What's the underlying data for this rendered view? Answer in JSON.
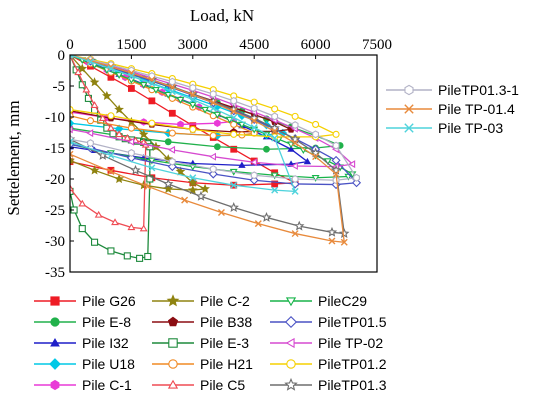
{
  "chart_data": {
    "type": "line",
    "title": "",
    "xlabel": "Load, kN",
    "ylabel": "Settelement, mm",
    "x_axis_position": "top",
    "xlim": [
      0,
      7500
    ],
    "ylim": [
      -35,
      0
    ],
    "x_ticks": [
      0,
      1500,
      3000,
      4500,
      6000,
      7500
    ],
    "x_tick_labels": [
      "0",
      "1500",
      "3000",
      "4500",
      "6000",
      "7500"
    ],
    "y_ticks": [
      0,
      -5,
      -10,
      -15,
      -20,
      -25,
      -30,
      -35
    ],
    "y_tick_labels": [
      "0",
      "-5",
      "-10",
      "-15",
      "-20",
      "-25",
      "-30",
      "-35"
    ],
    "grid": false,
    "legend_layout": "right-of-plot (3 entries) and below-plot (15 entries, 3 columns)",
    "series": [
      {
        "name": "Pile G26",
        "color": "#ee1c25",
        "marker": "square",
        "x": [
          0,
          500,
          1000,
          1500,
          2000,
          2500,
          3000,
          3500,
          4000,
          4500,
          5000,
          5500,
          5000,
          4000,
          3000,
          2000,
          1000,
          0
        ],
        "y": [
          0,
          -1.8,
          -3.6,
          -5.4,
          -7.4,
          -9.4,
          -11.4,
          -13.3,
          -15.2,
          -17.1,
          -19.0,
          -20.6,
          -20.8,
          -21.0,
          -20.6,
          -19.8,
          -18.6,
          -17.2
        ]
      },
      {
        "name": "Pile E-8",
        "color": "#21b14b",
        "marker": "circle",
        "x": [
          0,
          600,
          1200,
          1800,
          2400,
          3000,
          3600,
          4200,
          4800,
          5400,
          6000,
          6600,
          6000,
          4800,
          3600,
          2400,
          1200,
          0
        ],
        "y": [
          0,
          -1.2,
          -2.5,
          -3.8,
          -5.1,
          -6.4,
          -7.7,
          -9.0,
          -10.3,
          -11.6,
          -13.0,
          -14.6,
          -15.0,
          -15.2,
          -14.8,
          -14.0,
          -13.0,
          -11.8
        ]
      },
      {
        "name": "Pile I32",
        "color": "#1f1fc8",
        "marker": "triangle-up",
        "x": [
          0,
          600,
          1200,
          1800,
          2400,
          3000,
          3600,
          4200,
          4800,
          5400,
          5800,
          5400,
          4200,
          3000,
          1800,
          600,
          0
        ],
        "y": [
          0,
          -1.5,
          -3.1,
          -4.7,
          -6.3,
          -7.9,
          -9.6,
          -11.4,
          -13.2,
          -15.2,
          -17.2,
          -17.6,
          -17.8,
          -17.5,
          -16.6,
          -15.4,
          -14.8
        ]
      },
      {
        "name": "Pile U18",
        "color": "#00c8e6",
        "marker": "diamond",
        "x": [
          0,
          600,
          1200,
          1800,
          2400,
          3000,
          3600,
          4200,
          4800,
          5200,
          4800,
          3600,
          2400,
          1200,
          0
        ],
        "y": [
          0,
          -1.3,
          -2.7,
          -4.1,
          -5.5,
          -6.9,
          -8.3,
          -9.8,
          -11.3,
          -12.6,
          -12.9,
          -13.0,
          -12.6,
          -11.9,
          -11.0
        ]
      },
      {
        "name": "Pile C-1",
        "color": "#e93ad7",
        "marker": "hexagon",
        "x": [
          0,
          450,
          900,
          1350,
          1800,
          2250,
          2700,
          3150,
          3600,
          4000,
          3600,
          2700,
          1800,
          900,
          0
        ],
        "y": [
          0,
          -1.2,
          -2.4,
          -3.6,
          -4.8,
          -6.0,
          -7.2,
          -8.4,
          -9.6,
          -10.7,
          -11.0,
          -11.2,
          -10.8,
          -10.1,
          -9.2
        ]
      },
      {
        "name": "Pile C-2",
        "color": "#8f8310",
        "marker": "star",
        "x": [
          0,
          300,
          600,
          900,
          1200,
          1500,
          1800,
          2100,
          2400,
          2700,
          3000,
          3300,
          3000,
          2400,
          1800,
          1200,
          600,
          0
        ],
        "y": [
          0,
          -2.2,
          -4.4,
          -6.6,
          -8.8,
          -10.8,
          -12.8,
          -14.8,
          -16.8,
          -18.8,
          -20.6,
          -21.6,
          -21.8,
          -21.6,
          -21.0,
          -20.0,
          -18.6,
          -17.0
        ]
      },
      {
        "name": "Pile B38",
        "color": "#8b0d12",
        "marker": "pentagon",
        "x": [
          0,
          500,
          1000,
          1500,
          2000,
          2500,
          3000,
          3500,
          4000,
          4500,
          5000,
          5400,
          5000,
          4000,
          3000,
          2000,
          1000,
          0
        ],
        "y": [
          0,
          -1.0,
          -2.0,
          -3.0,
          -4.1,
          -5.2,
          -6.3,
          -7.4,
          -8.5,
          -9.6,
          -10.8,
          -12.0,
          -12.3,
          -12.4,
          -12.0,
          -11.2,
          -10.2,
          -9.0
        ]
      },
      {
        "name": "Pile E-3",
        "color": "#1d8a3c",
        "marker": "square-open",
        "x": [
          0,
          150,
          300,
          450,
          600,
          750,
          900,
          1050,
          1200,
          1350,
          1500,
          1650,
          1800,
          1900,
          1950,
          1950,
          1900,
          1700,
          1400,
          1000,
          600,
          300,
          100,
          0
        ],
        "y": [
          0,
          -2.4,
          -4.8,
          -7.0,
          -8.9,
          -10.5,
          -11.8,
          -12.7,
          -13.2,
          -13.5,
          -13.7,
          -13.9,
          -14.1,
          -14.3,
          -14.8,
          -20.0,
          -32.5,
          -32.8,
          -32.4,
          -31.6,
          -30.2,
          -28.0,
          -25.0,
          -22.0
        ]
      },
      {
        "name": "Pile H21",
        "color": "#f08a24",
        "marker": "circle-open",
        "x": [
          0,
          500,
          1000,
          1500,
          2000,
          2500,
          3000,
          3500,
          4000,
          4500,
          4200,
          3500,
          2500,
          1500,
          500,
          0
        ],
        "y": [
          0,
          -1.4,
          -2.8,
          -4.2,
          -5.6,
          -7.0,
          -8.4,
          -9.8,
          -11.2,
          -12.6,
          -12.9,
          -13.0,
          -12.6,
          -11.8,
          -10.6,
          -9.8
        ]
      },
      {
        "name": "Pile C5",
        "color": "#ef4c54",
        "marker": "triangle-open",
        "x": [
          0,
          200,
          400,
          600,
          800,
          1000,
          1200,
          1400,
          1600,
          1800,
          1850,
          1800,
          1500,
          1100,
          700,
          300,
          0
        ],
        "y": [
          0,
          -2.8,
          -5.6,
          -8.1,
          -10.2,
          -11.8,
          -12.8,
          -13.4,
          -13.8,
          -14.1,
          -14.5,
          -28.0,
          -27.8,
          -27.0,
          -25.8,
          -24.0,
          -21.5
        ]
      },
      {
        "name": "PileC29",
        "color": "#18b44a",
        "marker": "triangle-down-open",
        "x": [
          0,
          300,
          600,
          900,
          1200,
          1500,
          1800,
          2100,
          2400,
          2700,
          3000,
          3300,
          3600,
          3900,
          4200,
          4500,
          4800,
          5100,
          5400,
          5700,
          6000,
          6300,
          6600,
          6900,
          6800,
          6000,
          5000,
          4000,
          3000,
          2000,
          1000,
          0
        ],
        "y": [
          0,
          -0.8,
          -1.6,
          -2.4,
          -3.2,
          -4.0,
          -4.8,
          -5.6,
          -6.4,
          -7.2,
          -8.0,
          -8.8,
          -9.6,
          -10.4,
          -11.2,
          -12.0,
          -12.8,
          -13.6,
          -14.4,
          -15.3,
          -16.2,
          -17.1,
          -18.1,
          -19.2,
          -19.6,
          -19.8,
          -19.4,
          -18.8,
          -18.0,
          -17.0,
          -15.8,
          -14.4
        ]
      },
      {
        "name": "PileTP01.5",
        "color": "#4a52c4",
        "marker": "diamond-open",
        "x": [
          0,
          500,
          1000,
          1500,
          2000,
          2500,
          3000,
          3500,
          4000,
          4500,
          5000,
          5500,
          6000,
          6500,
          7000,
          6500,
          5500,
          4500,
          3500,
          2500,
          1500,
          500,
          0
        ],
        "y": [
          0,
          -1.0,
          -2.0,
          -3.1,
          -4.2,
          -5.3,
          -6.5,
          -7.7,
          -9.0,
          -10.4,
          -11.9,
          -13.5,
          -15.2,
          -17.0,
          -20.6,
          -20.9,
          -20.8,
          -20.2,
          -19.2,
          -18.0,
          -16.6,
          -15.0,
          -14.4
        ]
      },
      {
        "name": "Pile TP-02",
        "color": "#d64ad0",
        "marker": "triangle-left-open",
        "x": [
          0,
          500,
          1000,
          1500,
          2000,
          2500,
          3000,
          3500,
          4000,
          4500,
          5000,
          5500,
          6000,
          6500,
          6900,
          6500,
          5500,
          4500,
          3500,
          2500,
          1500,
          500,
          0
        ],
        "y": [
          0,
          -0.9,
          -1.8,
          -2.7,
          -3.7,
          -4.7,
          -5.7,
          -6.8,
          -8.0,
          -9.2,
          -10.5,
          -11.9,
          -13.4,
          -15.2,
          -17.6,
          -18.0,
          -17.9,
          -17.3,
          -16.4,
          -15.3,
          -14.0,
          -12.6,
          -12.0
        ]
      },
      {
        "name": "PileTP01.2",
        "color": "#f5d000",
        "marker": "circle-open",
        "x": [
          0,
          500,
          1000,
          1500,
          2000,
          2500,
          3000,
          3500,
          4000,
          4500,
          5000,
          5500,
          6000,
          6500,
          6000,
          5000,
          4000,
          3000,
          2000,
          1000,
          0
        ],
        "y": [
          0,
          -0.7,
          -1.4,
          -2.2,
          -3.0,
          -3.8,
          -4.7,
          -5.6,
          -6.6,
          -7.6,
          -8.7,
          -9.9,
          -11.2,
          -12.8,
          -13.2,
          -13.2,
          -12.8,
          -12.0,
          -11.0,
          -9.8,
          -8.8
        ]
      },
      {
        "name": "PileTP01.3",
        "color": "#6e6e6e",
        "marker": "star-open",
        "x": [
          0,
          500,
          1000,
          1500,
          2000,
          2500,
          3000,
          3500,
          4000,
          4500,
          5000,
          5500,
          6000,
          6500,
          6700,
          6400,
          5600,
          4800,
          4000,
          3200,
          2400,
          1600,
          800,
          0
        ],
        "y": [
          0,
          -0.9,
          -1.9,
          -2.9,
          -4.0,
          -5.1,
          -6.3,
          -7.5,
          -8.8,
          -10.2,
          -11.8,
          -13.6,
          -15.8,
          -18.6,
          -28.8,
          -28.6,
          -27.6,
          -26.2,
          -24.6,
          -22.8,
          -20.8,
          -18.6,
          -16.2,
          -13.6
        ]
      },
      {
        "name": "PileTP01.3-1",
        "color": "#b2b2c6",
        "marker": "hexagon-open",
        "x": [
          0,
          500,
          1000,
          1500,
          2000,
          2500,
          3000,
          3500,
          4000,
          4500,
          5000,
          5500,
          6000,
          6500,
          7000,
          6500,
          5500,
          4500,
          3500,
          2500,
          1500,
          500,
          0
        ],
        "y": [
          0,
          -0.8,
          -1.6,
          -2.5,
          -3.4,
          -4.3,
          -5.3,
          -6.3,
          -7.4,
          -8.6,
          -9.9,
          -11.3,
          -12.8,
          -14.6,
          -19.8,
          -20.2,
          -20.0,
          -19.4,
          -18.4,
          -17.2,
          -15.8,
          -14.2,
          -13.6
        ]
      },
      {
        "name": "Pile TP-01.4",
        "color": "#e88a3c",
        "marker": "x",
        "x": [
          0,
          500,
          1000,
          1500,
          2000,
          2500,
          3000,
          3500,
          4000,
          4500,
          5000,
          5500,
          6000,
          6500,
          6700,
          6400,
          5500,
          4600,
          3700,
          2800,
          1900,
          1000,
          0
        ],
        "y": [
          0,
          -0.9,
          -1.9,
          -2.9,
          -4.0,
          -5.2,
          -6.4,
          -7.7,
          -9.1,
          -10.6,
          -12.3,
          -14.2,
          -16.4,
          -19.2,
          -30.2,
          -30.0,
          -28.8,
          -27.2,
          -25.4,
          -23.4,
          -21.2,
          -18.8,
          -16.0
        ]
      },
      {
        "name": "Pile TP-03",
        "color": "#4fd3dc",
        "marker": "x",
        "x": [
          0,
          500,
          1000,
          1500,
          2000,
          2500,
          3000,
          3500,
          4000,
          4500,
          5000,
          5500,
          5000,
          4000,
          3000,
          2000,
          1000,
          0
        ],
        "y": [
          0,
          -1.1,
          -2.2,
          -3.4,
          -4.6,
          -5.9,
          -7.2,
          -8.6,
          -10.1,
          -11.7,
          -13.4,
          -22.0,
          -21.8,
          -21.0,
          -19.8,
          -18.2,
          -16.2,
          -14.0
        ]
      }
    ],
    "legend_right_order": [
      "PileTP01.3-1",
      "Pile TP-01.4",
      "Pile TP-03"
    ],
    "legend_bottom_order": [
      "Pile G26",
      "Pile C-2",
      "PileC29",
      "Pile E-8",
      "Pile B38",
      "PileTP01.5",
      "Pile I32",
      "Pile E-3",
      "Pile TP-02",
      "Pile U18",
      "Pile H21",
      "PileTP01.2",
      "Pile C-1",
      "Pile C5",
      "PileTP01.3"
    ]
  }
}
